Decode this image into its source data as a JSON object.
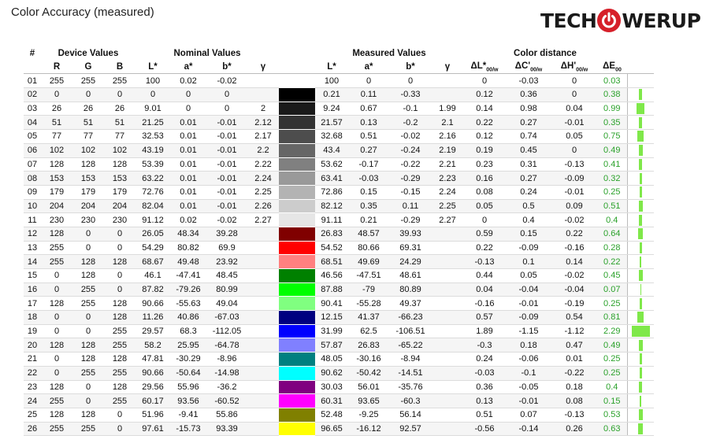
{
  "title": "Color Accuracy (measured)",
  "logo": {
    "left": "TECH",
    "right": "WERUP"
  },
  "headers": {
    "hash": "#",
    "device": "Device Values",
    "nominal": "Nominal Values",
    "measured": "Measured Values",
    "distance": "Color distance",
    "R": "R",
    "G": "G",
    "B": "B",
    "L": "L*",
    "a": "a*",
    "b": "b*",
    "gamma": "γ",
    "dL": "ΔL*",
    "dC": "ΔC'",
    "dH": "ΔH'",
    "dE": "ΔE",
    "sub_w": "00/w",
    "sub_00": "00"
  },
  "rows": [
    [
      "01",
      "255",
      "255",
      "255",
      "100",
      "0.02",
      "-0.02",
      "",
      "#ffffff",
      "100",
      "0",
      "0",
      "",
      "0",
      "-0.03",
      "0",
      "0.03",
      0.03
    ],
    [
      "02",
      "0",
      "0",
      "0",
      "0",
      "0",
      "0",
      "",
      "#000000",
      "0.21",
      "0.11",
      "-0.33",
      "",
      "0.12",
      "0.36",
      "0",
      "0.38",
      0.38
    ],
    [
      "03",
      "26",
      "26",
      "26",
      "9.01",
      "0",
      "0",
      "2",
      "#1a1a1a",
      "9.24",
      "0.67",
      "-0.1",
      "1.99",
      "0.14",
      "0.98",
      "0.04",
      "0.99",
      0.99
    ],
    [
      "04",
      "51",
      "51",
      "51",
      "21.25",
      "0.01",
      "-0.01",
      "2.12",
      "#333333",
      "21.57",
      "0.13",
      "-0.2",
      "2.1",
      "0.22",
      "0.27",
      "-0.01",
      "0.35",
      0.35
    ],
    [
      "05",
      "77",
      "77",
      "77",
      "32.53",
      "0.01",
      "-0.01",
      "2.17",
      "#4d4d4d",
      "32.68",
      "0.51",
      "-0.02",
      "2.16",
      "0.12",
      "0.74",
      "0.05",
      "0.75",
      0.75
    ],
    [
      "06",
      "102",
      "102",
      "102",
      "43.19",
      "0.01",
      "-0.01",
      "2.2",
      "#666666",
      "43.4",
      "0.27",
      "-0.24",
      "2.19",
      "0.19",
      "0.45",
      "0",
      "0.49",
      0.49
    ],
    [
      "07",
      "128",
      "128",
      "128",
      "53.39",
      "0.01",
      "-0.01",
      "2.22",
      "#808080",
      "53.62",
      "-0.17",
      "-0.22",
      "2.21",
      "0.23",
      "0.31",
      "-0.13",
      "0.41",
      0.41
    ],
    [
      "08",
      "153",
      "153",
      "153",
      "63.22",
      "0.01",
      "-0.01",
      "2.24",
      "#999999",
      "63.41",
      "-0.03",
      "-0.29",
      "2.23",
      "0.16",
      "0.27",
      "-0.09",
      "0.32",
      0.32
    ],
    [
      "09",
      "179",
      "179",
      "179",
      "72.76",
      "0.01",
      "-0.01",
      "2.25",
      "#b3b3b3",
      "72.86",
      "0.15",
      "-0.15",
      "2.24",
      "0.08",
      "0.24",
      "-0.01",
      "0.25",
      0.25
    ],
    [
      "10",
      "204",
      "204",
      "204",
      "82.04",
      "0.01",
      "-0.01",
      "2.26",
      "#cccccc",
      "82.12",
      "0.35",
      "0.11",
      "2.25",
      "0.05",
      "0.5",
      "0.09",
      "0.51",
      0.51
    ],
    [
      "11",
      "230",
      "230",
      "230",
      "91.12",
      "0.02",
      "-0.02",
      "2.27",
      "#e6e6e6",
      "91.11",
      "0.21",
      "-0.29",
      "2.27",
      "0",
      "0.4",
      "-0.02",
      "0.4",
      0.4
    ],
    [
      "12",
      "128",
      "0",
      "0",
      "26.05",
      "48.34",
      "39.28",
      "",
      "#800000",
      "26.83",
      "48.57",
      "39.93",
      "",
      "0.59",
      "0.15",
      "0.22",
      "0.64",
      0.64
    ],
    [
      "13",
      "255",
      "0",
      "0",
      "54.29",
      "80.82",
      "69.9",
      "",
      "#ff0000",
      "54.52",
      "80.66",
      "69.31",
      "",
      "0.22",
      "-0.09",
      "-0.16",
      "0.28",
      0.28
    ],
    [
      "14",
      "255",
      "128",
      "128",
      "68.67",
      "49.48",
      "23.92",
      "",
      "#ff8080",
      "68.51",
      "49.69",
      "24.29",
      "",
      "-0.13",
      "0.1",
      "0.14",
      "0.22",
      0.22
    ],
    [
      "15",
      "0",
      "128",
      "0",
      "46.1",
      "-47.41",
      "48.45",
      "",
      "#008000",
      "46.56",
      "-47.51",
      "48.61",
      "",
      "0.44",
      "0.05",
      "-0.02",
      "0.45",
      0.45
    ],
    [
      "16",
      "0",
      "255",
      "0",
      "87.82",
      "-79.26",
      "80.99",
      "",
      "#00ff00",
      "87.88",
      "-79",
      "80.89",
      "",
      "0.04",
      "-0.04",
      "-0.04",
      "0.07",
      0.07
    ],
    [
      "17",
      "128",
      "255",
      "128",
      "90.66",
      "-55.63",
      "49.04",
      "",
      "#80ff80",
      "90.41",
      "-55.28",
      "49.37",
      "",
      "-0.16",
      "-0.01",
      "-0.19",
      "0.25",
      0.25
    ],
    [
      "18",
      "0",
      "0",
      "128",
      "11.26",
      "40.86",
      "-67.03",
      "",
      "#000080",
      "12.15",
      "41.37",
      "-66.23",
      "",
      "0.57",
      "-0.09",
      "0.54",
      "0.81",
      0.81
    ],
    [
      "19",
      "0",
      "0",
      "255",
      "29.57",
      "68.3",
      "-112.05",
      "",
      "#0000ff",
      "31.99",
      "62.5",
      "-106.51",
      "",
      "1.89",
      "-1.15",
      "-1.12",
      "2.29",
      2.29
    ],
    [
      "20",
      "128",
      "128",
      "255",
      "58.2",
      "25.95",
      "-64.78",
      "",
      "#8080ff",
      "57.87",
      "26.83",
      "-65.22",
      "",
      "-0.3",
      "0.18",
      "0.47",
      "0.49",
      0.49
    ],
    [
      "21",
      "0",
      "128",
      "128",
      "47.81",
      "-30.29",
      "-8.96",
      "",
      "#008080",
      "48.05",
      "-30.16",
      "-8.94",
      "",
      "0.24",
      "-0.06",
      "0.01",
      "0.25",
      0.25
    ],
    [
      "22",
      "0",
      "255",
      "255",
      "90.66",
      "-50.64",
      "-14.98",
      "",
      "#00ffff",
      "90.62",
      "-50.42",
      "-14.51",
      "",
      "-0.03",
      "-0.1",
      "-0.22",
      "0.25",
      0.25
    ],
    [
      "23",
      "128",
      "0",
      "128",
      "29.56",
      "55.96",
      "-36.2",
      "",
      "#800080",
      "30.03",
      "56.01",
      "-35.76",
      "",
      "0.36",
      "-0.05",
      "0.18",
      "0.4",
      0.4
    ],
    [
      "24",
      "255",
      "0",
      "255",
      "60.17",
      "93.56",
      "-60.52",
      "",
      "#ff00ff",
      "60.31",
      "93.65",
      "-60.3",
      "",
      "0.13",
      "-0.01",
      "0.08",
      "0.15",
      0.15
    ],
    [
      "25",
      "128",
      "128",
      "0",
      "51.96",
      "-9.41",
      "55.86",
      "",
      "#808000",
      "52.48",
      "-9.25",
      "56.14",
      "",
      "0.51",
      "0.07",
      "-0.13",
      "0.53",
      0.53
    ],
    [
      "26",
      "255",
      "255",
      "0",
      "97.61",
      "-15.73",
      "93.39",
      "",
      "#ffff00",
      "96.65",
      "-16.12",
      "92.57",
      "",
      "-0.56",
      "-0.14",
      "0.26",
      "0.63",
      0.63
    ]
  ]
}
